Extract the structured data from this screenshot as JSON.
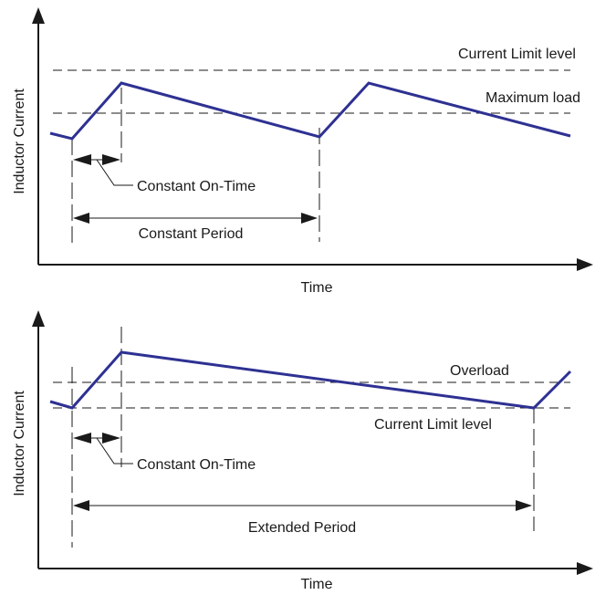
{
  "top_panel": {
    "y_axis_label": "Inductor Current",
    "x_axis_label": "Time",
    "current_limit_label": "Current Limit level",
    "maximum_load_label": "Maximum load",
    "on_time_label": "Constant On-Time",
    "period_label": "Constant Period"
  },
  "bottom_panel": {
    "y_axis_label": "Inductor Current",
    "x_axis_label": "Time",
    "overload_label": "Overload",
    "current_limit_label": "Current Limit level",
    "on_time_label": "Constant On-Time",
    "period_label": "Extended Period"
  },
  "colors": {
    "waveform": "#2e3192",
    "lines": "#1a1a1a"
  }
}
